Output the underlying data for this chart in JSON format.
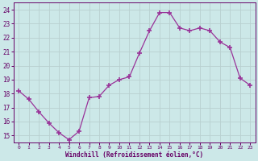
{
  "x": [
    0,
    1,
    2,
    3,
    4,
    5,
    6,
    7,
    8,
    9,
    10,
    11,
    12,
    13,
    14,
    15,
    16,
    17,
    18,
    19,
    20,
    21,
    22,
    23
  ],
  "y": [
    18.2,
    17.6,
    16.7,
    15.9,
    15.2,
    14.7,
    15.3,
    17.7,
    17.8,
    18.6,
    19.0,
    19.2,
    20.9,
    22.5,
    23.8,
    23.8,
    22.7,
    22.5,
    22.7,
    22.5,
    21.7,
    21.3,
    19.1,
    18.6
  ],
  "line_color": "#993399",
  "marker": "+",
  "marker_size": 4,
  "marker_linewidth": 1.2,
  "bg_color": "#cce8e8",
  "grid_color": "#b8d0d0",
  "xlabel": "Windchill (Refroidissement éolien,°C)",
  "xlabel_color": "#660066",
  "tick_color": "#660066",
  "label_fontsize": 5.5,
  "xlabel_fontsize": 5.5,
  "ylim": [
    14.5,
    24.5
  ],
  "xlim": [
    -0.5,
    23.5
  ],
  "yticks": [
    15,
    16,
    17,
    18,
    19,
    20,
    21,
    22,
    23,
    24
  ],
  "xticks": [
    0,
    1,
    2,
    3,
    4,
    5,
    6,
    7,
    8,
    9,
    10,
    11,
    12,
    13,
    14,
    15,
    16,
    17,
    18,
    19,
    20,
    21,
    22,
    23
  ]
}
